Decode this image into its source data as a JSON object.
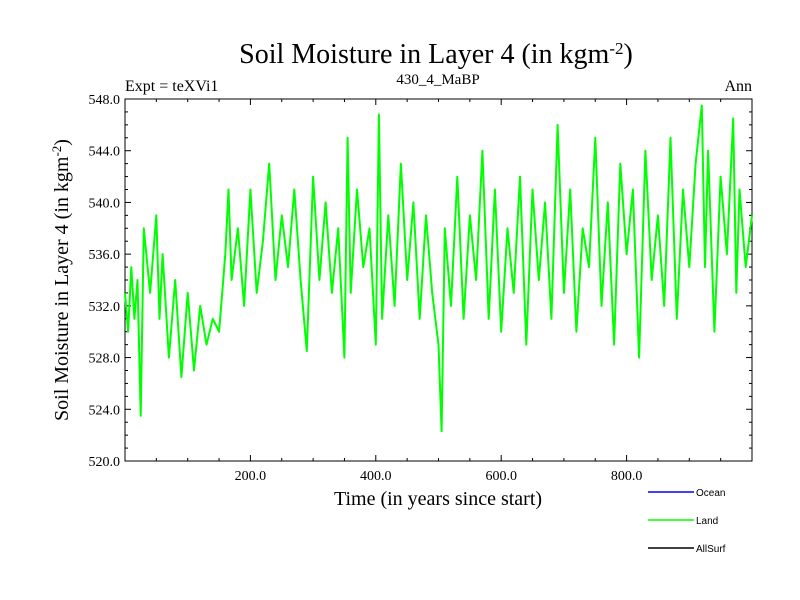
{
  "chart_data": {
    "type": "line",
    "title_main": "Soil Moisture in Layer 4 (in kgm",
    "title_sup": "-2",
    "title_end": ")",
    "subtitle_left": "Expt = teXVi1",
    "subtitle_center": "430_4_MaBP",
    "subtitle_right": "Ann",
    "ylabel_main": "Soil Moisture in Layer 4 (in kgm",
    "ylabel_sup": "-2",
    "ylabel_end": ")",
    "xlabel": "Time (in years since start)",
    "xlim": [
      0,
      1000
    ],
    "ylim": [
      520,
      548
    ],
    "xticks": [
      200,
      400,
      600,
      800
    ],
    "xtick_labels": [
      "200.0",
      "400.0",
      "600.0",
      "800.0"
    ],
    "yticks": [
      520,
      524,
      528,
      532,
      536,
      540,
      544,
      548
    ],
    "ytick_labels": [
      "520.0",
      "524.0",
      "528.0",
      "532.0",
      "536.0",
      "540.0",
      "544.0",
      "548.0"
    ],
    "legend": [
      {
        "name": "Ocean",
        "color": "#0000ff"
      },
      {
        "name": "Land",
        "color": "#00ff00"
      },
      {
        "name": "AllSurf",
        "color": "#000000"
      }
    ],
    "series": [
      {
        "name": "Land",
        "color": "#00ff00",
        "x": [
          0,
          5,
          10,
          15,
          20,
          25,
          30,
          40,
          50,
          55,
          60,
          70,
          80,
          90,
          100,
          110,
          120,
          130,
          140,
          150,
          160,
          165,
          170,
          180,
          190,
          200,
          210,
          220,
          230,
          240,
          250,
          260,
          270,
          280,
          290,
          300,
          310,
          320,
          330,
          340,
          350,
          355,
          360,
          370,
          380,
          390,
          400,
          405,
          410,
          420,
          430,
          440,
          450,
          460,
          470,
          480,
          490,
          500,
          505,
          510,
          520,
          530,
          540,
          550,
          560,
          570,
          580,
          590,
          600,
          610,
          620,
          630,
          640,
          650,
          660,
          670,
          680,
          690,
          700,
          710,
          720,
          730,
          740,
          750,
          760,
          770,
          780,
          790,
          800,
          810,
          820,
          830,
          840,
          850,
          860,
          870,
          880,
          890,
          900,
          910,
          920,
          925,
          930,
          940,
          950,
          960,
          970,
          975,
          980,
          990,
          1000
        ],
        "values": [
          533,
          530,
          535,
          531,
          534,
          523.5,
          538,
          533,
          539,
          531,
          536,
          528,
          534,
          526.5,
          533,
          527,
          532,
          529,
          531,
          530,
          536,
          541,
          534,
          538,
          532,
          541,
          533,
          537,
          543,
          534,
          539,
          535,
          541,
          534,
          528.5,
          542,
          534,
          540,
          533,
          538,
          528,
          545,
          533,
          541,
          535,
          538,
          529,
          546.8,
          531,
          539,
          532,
          543,
          534,
          540,
          531,
          539,
          533,
          529,
          522.3,
          538,
          532,
          542,
          531,
          539,
          534,
          544,
          531,
          541,
          530,
          538,
          533,
          542,
          529,
          541,
          534,
          540,
          531,
          546,
          533,
          541,
          530,
          538,
          535,
          545,
          532,
          540,
          529,
          543,
          536,
          541,
          528,
          544,
          534,
          539,
          532,
          545,
          531,
          541,
          535,
          543,
          547.5,
          535,
          544,
          530,
          542,
          536,
          546.5,
          533,
          541,
          535,
          539
        ]
      }
    ]
  }
}
